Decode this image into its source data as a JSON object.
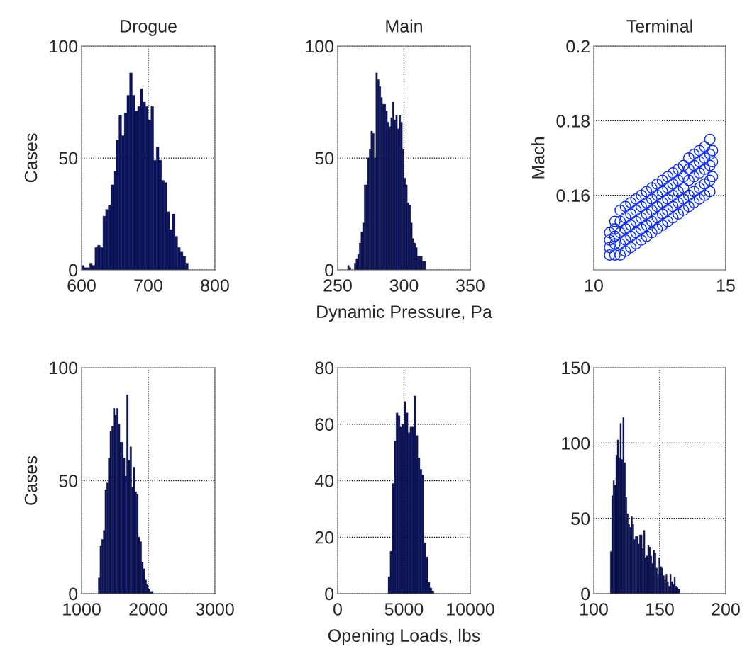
{
  "chart_data": [
    {
      "type": "histogram",
      "title": "Drogue",
      "ylabel": "Cases",
      "color": "#0b1466",
      "grid": true,
      "xlim": [
        600,
        800
      ],
      "xticks": [
        600,
        700,
        800
      ],
      "ylim": [
        0,
        100
      ],
      "yticks": [
        0,
        50,
        100
      ],
      "bins": [
        600,
        604,
        608,
        612,
        616,
        620,
        624,
        628,
        632,
        636,
        640,
        644,
        648,
        652,
        656,
        660,
        664,
        668,
        672,
        676,
        680,
        684,
        688,
        692,
        696,
        700,
        704,
        708,
        712,
        716,
        720,
        724,
        728,
        732,
        736,
        740,
        744,
        748,
        752,
        756,
        760
      ],
      "values": [
        2,
        1,
        1,
        3,
        2,
        10,
        11,
        10,
        24,
        27,
        29,
        38,
        44,
        58,
        69,
        60,
        70,
        78,
        88,
        78,
        71,
        73,
        81,
        75,
        73,
        67,
        73,
        49,
        55,
        49,
        40,
        39,
        26,
        18,
        25,
        15,
        10,
        8,
        6,
        3
      ]
    },
    {
      "type": "histogram",
      "title": "Main",
      "xlabel": "Dynamic Pressure, Pa",
      "color": "#0b1466",
      "grid": true,
      "xlim": [
        250,
        350
      ],
      "xticks": [
        250,
        300,
        350
      ],
      "ylim": [
        0,
        100
      ],
      "yticks": [
        0,
        50,
        100
      ],
      "bins": [
        257.5,
        258.75,
        260,
        261.25,
        262.5,
        263.75,
        265,
        266.25,
        267.5,
        268.75,
        270,
        271.25,
        272.5,
        273.75,
        275,
        276.25,
        277.5,
        278.75,
        280,
        281.25,
        282.5,
        283.75,
        285,
        286.25,
        287.5,
        288.75,
        290,
        291.25,
        292.5,
        293.75,
        295,
        296.25,
        297.5,
        298.75,
        300,
        301.25,
        302.5,
        303.75,
        305,
        306.25,
        307.5,
        308.75,
        310,
        311.25,
        312.5,
        313.75,
        315,
        316.25
      ],
      "values": [
        2,
        1,
        0,
        0,
        3,
        5,
        7,
        12,
        17,
        21,
        38,
        38,
        50,
        54,
        62,
        61,
        50,
        88,
        85,
        82,
        77,
        74,
        74,
        71,
        66,
        64,
        68,
        75,
        67,
        69,
        63,
        69,
        66,
        54,
        41,
        38,
        30,
        29,
        21,
        14,
        12,
        10,
        6,
        6,
        6,
        4,
        4
      ]
    },
    {
      "type": "scatter",
      "title": "Terminal",
      "ylabel": "Mach",
      "color": "#0a2bff",
      "marker": "circle",
      "grid": true,
      "xlim": [
        10,
        15
      ],
      "xticks": [
        10,
        15
      ],
      "ylim": [
        0.14,
        0.2
      ],
      "yticks": [
        0.16,
        0.18,
        0.2
      ],
      "x": [
        10.6,
        10.6,
        10.6,
        10.6,
        10.8,
        10.8,
        10.8,
        10.8,
        10.8,
        11.0,
        11.0,
        11.0,
        11.0,
        11.0,
        11.2,
        11.2,
        11.2,
        11.2,
        11.2,
        11.4,
        11.4,
        11.4,
        11.4,
        11.4,
        11.6,
        11.6,
        11.6,
        11.6,
        11.6,
        11.8,
        11.8,
        11.8,
        11.8,
        11.8,
        12.0,
        12.0,
        12.0,
        12.0,
        12.0,
        12.2,
        12.2,
        12.2,
        12.2,
        12.2,
        12.4,
        12.4,
        12.4,
        12.4,
        12.4,
        12.6,
        12.6,
        12.6,
        12.6,
        12.6,
        12.8,
        12.8,
        12.8,
        12.8,
        12.8,
        13.0,
        13.0,
        13.0,
        13.0,
        13.0,
        13.2,
        13.2,
        13.2,
        13.2,
        13.2,
        13.4,
        13.4,
        13.4,
        13.4,
        13.4,
        13.6,
        13.6,
        13.6,
        13.6,
        13.6,
        13.8,
        13.8,
        13.8,
        13.8,
        13.8,
        14.0,
        14.0,
        14.0,
        14.0,
        14.0,
        14.2,
        14.2,
        14.2,
        14.2,
        14.2,
        14.4,
        14.4,
        14.4,
        14.4,
        14.4,
        14.5,
        14.5,
        14.5
      ],
      "values": [
        0.144,
        0.146,
        0.148,
        0.15,
        0.144,
        0.147,
        0.149,
        0.151,
        0.153,
        0.144,
        0.147,
        0.15,
        0.153,
        0.156,
        0.145,
        0.148,
        0.151,
        0.154,
        0.157,
        0.146,
        0.149,
        0.152,
        0.155,
        0.158,
        0.147,
        0.15,
        0.153,
        0.156,
        0.159,
        0.148,
        0.151,
        0.154,
        0.157,
        0.16,
        0.149,
        0.152,
        0.155,
        0.158,
        0.161,
        0.15,
        0.153,
        0.156,
        0.159,
        0.162,
        0.151,
        0.154,
        0.157,
        0.16,
        0.163,
        0.152,
        0.155,
        0.158,
        0.161,
        0.164,
        0.153,
        0.156,
        0.159,
        0.162,
        0.165,
        0.154,
        0.157,
        0.16,
        0.163,
        0.166,
        0.155,
        0.158,
        0.161,
        0.164,
        0.167,
        0.156,
        0.159,
        0.162,
        0.165,
        0.168,
        0.157,
        0.16,
        0.164,
        0.167,
        0.17,
        0.158,
        0.161,
        0.165,
        0.168,
        0.171,
        0.159,
        0.162,
        0.166,
        0.169,
        0.172,
        0.16,
        0.163,
        0.167,
        0.17,
        0.173,
        0.161,
        0.164,
        0.168,
        0.171,
        0.175,
        0.165,
        0.169,
        0.172
      ]
    },
    {
      "type": "histogram",
      "ylabel": "Cases",
      "color": "#0b1466",
      "grid": true,
      "xlim": [
        1000,
        3000
      ],
      "xticks": [
        1000,
        2000,
        3000
      ],
      "ylim": [
        0,
        100
      ],
      "yticks": [
        0,
        50,
        100
      ],
      "bins": [
        1250,
        1275,
        1300,
        1325,
        1350,
        1375,
        1400,
        1425,
        1450,
        1475,
        1500,
        1525,
        1550,
        1575,
        1600,
        1625,
        1650,
        1675,
        1700,
        1725,
        1750,
        1775,
        1800,
        1825,
        1850,
        1875,
        1900,
        1925,
        1950,
        1975,
        2000,
        2025,
        2050,
        2075
      ],
      "values": [
        7,
        21,
        24,
        28,
        46,
        49,
        60,
        72,
        74,
        82,
        79,
        82,
        75,
        67,
        67,
        60,
        52,
        88,
        59,
        65,
        47,
        56,
        45,
        44,
        25,
        23,
        14,
        11,
        6,
        4,
        2,
        1,
        1
      ]
    },
    {
      "type": "histogram",
      "xlabel": "Opening Loads, lbs",
      "color": "#0b1466",
      "grid": true,
      "xlim": [
        0,
        10000
      ],
      "xticks": [
        0,
        5000,
        10000
      ],
      "ylim": [
        0,
        80
      ],
      "yticks": [
        0,
        20,
        40,
        60,
        80
      ],
      "bins": [
        3800,
        3950,
        4100,
        4250,
        4400,
        4550,
        4700,
        4850,
        5000,
        5150,
        5300,
        5450,
        5600,
        5750,
        5900,
        6050,
        6200,
        6350,
        6500,
        6650,
        6800,
        6950,
        7100,
        7250
      ],
      "values": [
        6,
        15,
        39,
        54,
        64,
        63,
        59,
        60,
        68,
        64,
        57,
        59,
        59,
        70,
        56,
        48,
        44,
        42,
        18,
        13,
        4,
        2,
        1
      ]
    },
    {
      "type": "histogram",
      "color": "#0b1466",
      "grid": true,
      "xlim": [
        100,
        200
      ],
      "xticks": [
        100,
        150,
        200
      ],
      "ylim": [
        0,
        150
      ],
      "yticks": [
        0,
        50,
        100,
        150
      ],
      "bins": [
        112.5,
        113.55,
        114.6,
        115.65,
        116.7,
        117.75,
        118.8,
        119.85,
        120.9,
        121.95,
        123,
        124.05,
        125.1,
        126.15,
        127.2,
        128.25,
        129.3,
        130.35,
        131.4,
        132.45,
        133.5,
        134.55,
        135.6,
        136.65,
        137.7,
        138.75,
        139.8,
        140.85,
        141.9,
        142.95,
        144,
        145.05,
        146.1,
        147.15,
        148.2,
        149.25,
        150.3,
        151.35,
        152.4,
        153.45,
        154.5,
        155.55,
        156.6,
        157.65,
        158.7,
        159.75,
        160.8,
        161.85,
        162.9,
        163.95,
        165
      ],
      "values": [
        28,
        65,
        75,
        72,
        92,
        102,
        90,
        113,
        89,
        117,
        87,
        64,
        53,
        46,
        44,
        51,
        46,
        36,
        38,
        38,
        33,
        39,
        39,
        30,
        42,
        24,
        25,
        32,
        31,
        25,
        20,
        29,
        27,
        17,
        13,
        24,
        18,
        17,
        12,
        9,
        13,
        8,
        5,
        13,
        8,
        6,
        11,
        5,
        4,
        3
      ]
    }
  ]
}
